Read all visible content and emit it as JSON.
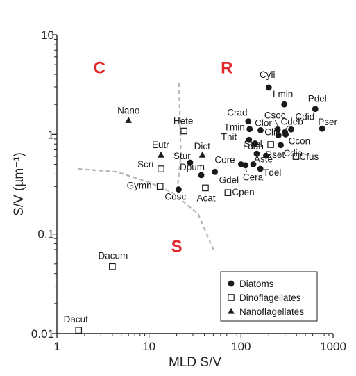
{
  "chart_data": {
    "type": "scatter",
    "xlabel": "MLD S/V",
    "ylabel": "S/V (µm⁻¹)",
    "x_scale": "log",
    "y_scale": "log",
    "xlim": [
      1,
      1000
    ],
    "ylim": [
      0.01,
      10
    ],
    "x_ticks": [
      "1",
      "10",
      "100",
      "1000"
    ],
    "y_ticks": [
      "0.01",
      "0.1",
      "1",
      "10"
    ],
    "grid": false,
    "legend_position": "bottom-right",
    "colors": {
      "marker": "#1a1a1a",
      "region_label": "#e0282a",
      "boundary": "#b5b5b5"
    },
    "regions": [
      {
        "label": "C",
        "x": 2.9,
        "y": 4.1
      },
      {
        "label": "R",
        "x": 70,
        "y": 4.1
      },
      {
        "label": "S",
        "x": 20,
        "y": 0.066
      }
    ],
    "boundary_lines": [
      {
        "points": [
          [
            21.2,
            3.3
          ],
          [
            22.2,
            0.62
          ],
          [
            20.3,
            0.28
          ]
        ]
      },
      {
        "points": [
          [
            1.7,
            0.45
          ],
          [
            4.5,
            0.42
          ],
          [
            10,
            0.33
          ],
          [
            18,
            0.26
          ],
          [
            34,
            0.16
          ],
          [
            50,
            0.07
          ]
        ]
      }
    ],
    "series": [
      {
        "name": "Diatoms",
        "marker": "circle",
        "points": [
          {
            "label": "Cyli",
            "x": 200,
            "y": 2.95
          },
          {
            "label": "Lmin",
            "x": 295,
            "y": 2.0
          },
          {
            "label": "Pdel",
            "x": 640,
            "y": 1.8
          },
          {
            "label": "Crad",
            "x": 120,
            "y": 1.35
          },
          {
            "label": "Tmin",
            "x": 124,
            "y": 1.13
          },
          {
            "label": "Clor",
            "x": 163,
            "y": 1.1
          },
          {
            "label": "Csoc",
            "x": 250,
            "y": 1.12
          },
          {
            "label": "Cdeb",
            "x": 300,
            "y": 1.05
          },
          {
            "label": "Cdid",
            "x": 350,
            "y": 1.12
          },
          {
            "label": "Pser",
            "x": 760,
            "y": 1.14
          },
          {
            "label": "Tnit",
            "x": 122,
            "y": 0.88
          },
          {
            "label": "Clin",
            "x": 255,
            "y": 0.98
          },
          {
            "label": "Ccon",
            "x": 305,
            "y": 1.0
          },
          {
            "label": "Skel",
            "x": 142,
            "y": 0.81
          },
          {
            "label": "Cdia",
            "x": 270,
            "y": 0.78
          },
          {
            "label": "Ldan",
            "x": 148,
            "y": 0.64
          },
          {
            "label": "Rset",
            "x": 187,
            "y": 0.61
          },
          {
            "label": "Core",
            "x": 100,
            "y": 0.5
          },
          {
            "label": "Aste",
            "x": 136,
            "y": 0.5
          },
          {
            "label": "Stur",
            "x": 28,
            "y": 0.52
          },
          {
            "label": "Dpum",
            "x": 37,
            "y": 0.39
          },
          {
            "label": "Gdel",
            "x": 52,
            "y": 0.42
          },
          {
            "label": "Cera",
            "x": 112,
            "y": 0.49
          },
          {
            "label": "Tdel",
            "x": 162,
            "y": 0.45
          },
          {
            "label": "Cosc",
            "x": 21,
            "y": 0.28
          }
        ]
      },
      {
        "name": "Dinoflagellates",
        "marker": "square",
        "points": [
          {
            "label": "Hete",
            "x": 24,
            "y": 1.08
          },
          {
            "label": "Scri",
            "x": 13.5,
            "y": 0.45
          },
          {
            "label": "Gymn",
            "x": 13.2,
            "y": 0.3
          },
          {
            "label": "Acat",
            "x": 41,
            "y": 0.29
          },
          {
            "label": "Cfus",
            "x": 395,
            "y": 0.6
          },
          {
            "label": "Cpen",
            "x": 72,
            "y": 0.26
          },
          {
            "label": "",
            "x": 210,
            "y": 0.79
          },
          {
            "label": "Dacum",
            "x": 4.0,
            "y": 0.047
          },
          {
            "label": "Dacut",
            "x": 1.72,
            "y": 0.0108
          }
        ]
      },
      {
        "name": "Nanoflagellates",
        "marker": "triangle",
        "points": [
          {
            "label": "Nano",
            "x": 6.0,
            "y": 1.38
          },
          {
            "label": "Eutr",
            "x": 13.5,
            "y": 0.62
          },
          {
            "label": "Dict",
            "x": 38,
            "y": 0.62
          }
        ]
      }
    ]
  }
}
